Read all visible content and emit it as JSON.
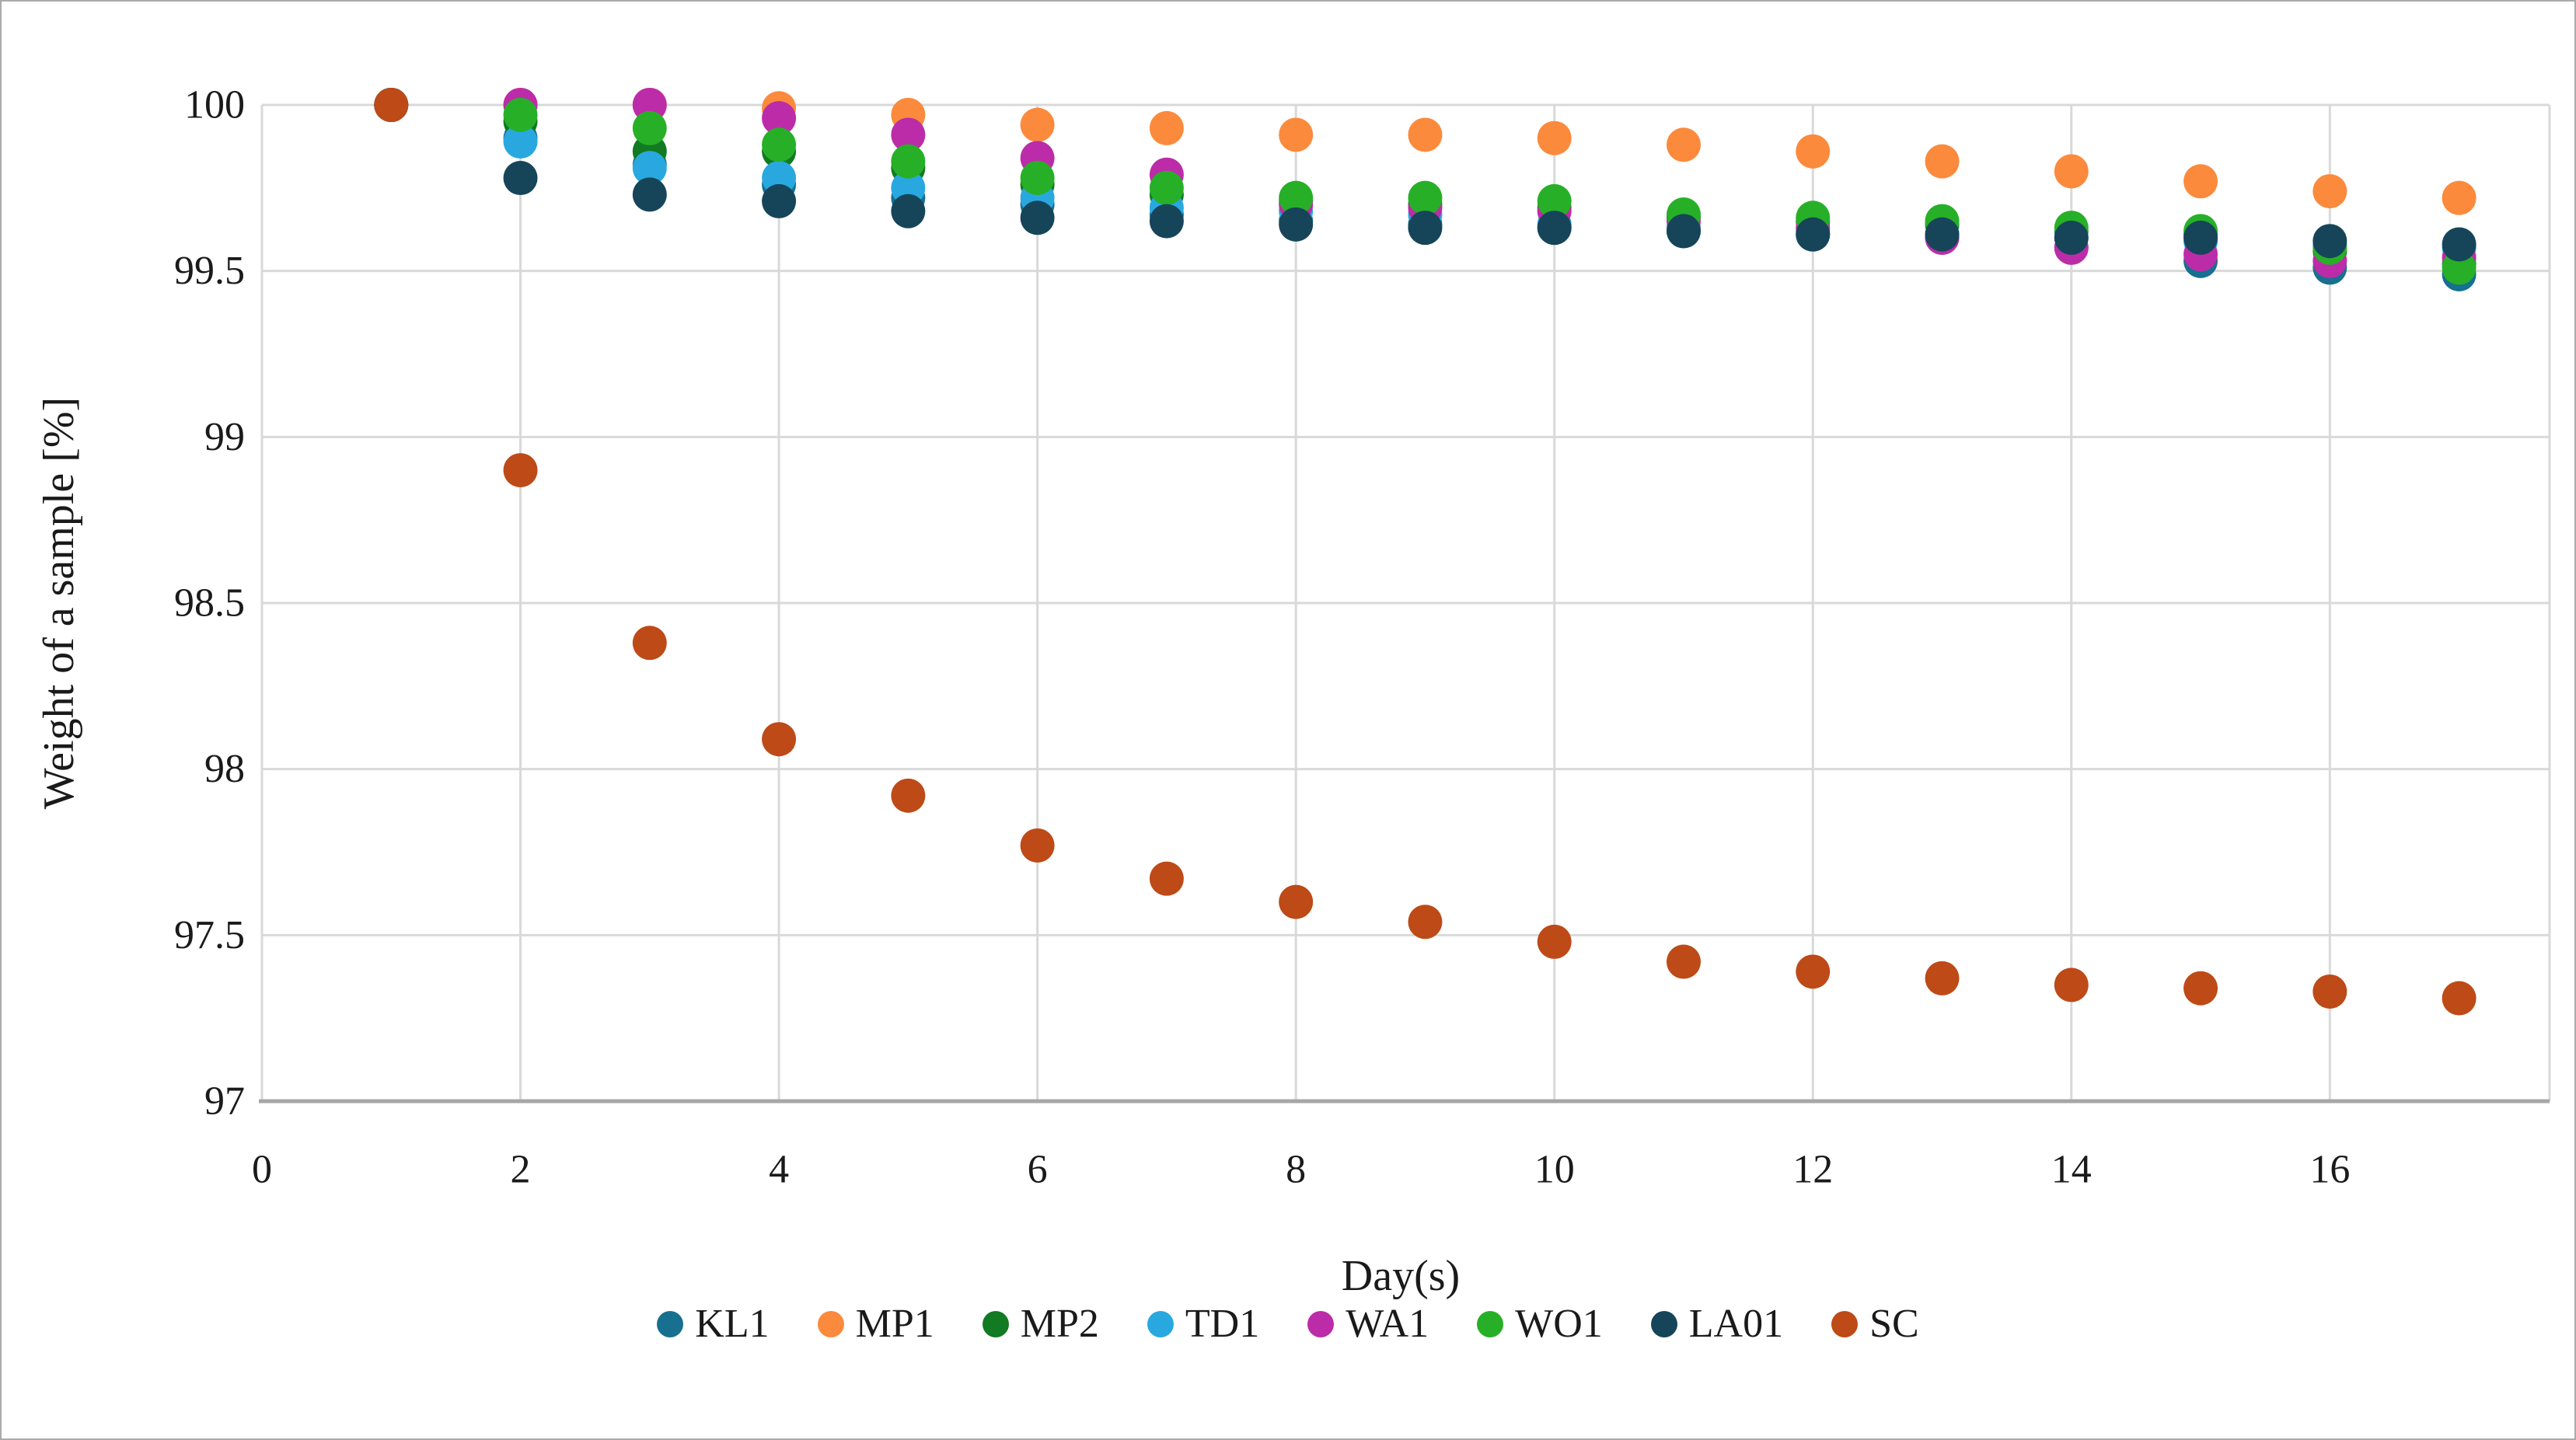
{
  "figure": {
    "x_axis_title": "Day(s)",
    "y_axis_title": "Weight of a sample [%]"
  },
  "chart_data": {
    "type": "scatter",
    "title": "",
    "xlabel": "Day(s)",
    "ylabel": "Weight of a sample [%]",
    "x_range": [
      0,
      17.7
    ],
    "y_range": [
      97,
      100
    ],
    "x_ticks": [
      0,
      2,
      4,
      6,
      8,
      10,
      12,
      14,
      16
    ],
    "y_ticks": [
      97,
      97.5,
      98,
      98.5,
      99,
      99.5,
      100
    ],
    "grid": true,
    "legend_position": "bottom-center",
    "marker": "circle",
    "x": [
      1,
      2,
      3,
      4,
      5,
      6,
      7,
      8,
      9,
      10,
      11,
      12,
      13,
      14,
      15,
      16,
      17
    ],
    "series": [
      {
        "name": "KL1",
        "color": "#17708f",
        "values": [
          100,
          99.9,
          99.82,
          99.76,
          99.72,
          99.7,
          99.67,
          99.65,
          99.64,
          99.63,
          99.62,
          99.61,
          99.6,
          99.57,
          99.53,
          99.51,
          99.49
        ]
      },
      {
        "name": "MP1",
        "color": "#fb8a3c",
        "values": [
          100,
          100.0,
          100.0,
          99.99,
          99.97,
          99.94,
          99.93,
          99.91,
          99.91,
          99.9,
          99.88,
          99.86,
          99.83,
          99.8,
          99.77,
          99.74,
          99.72
        ]
      },
      {
        "name": "MP2",
        "color": "#127a22",
        "values": [
          100,
          99.95,
          99.86,
          99.86,
          99.81,
          99.76,
          99.73,
          99.71,
          99.7,
          99.69,
          99.66,
          99.65,
          99.64,
          99.62,
          99.61,
          99.56,
          99.52
        ]
      },
      {
        "name": "TD1",
        "color": "#29a8e0",
        "values": [
          100,
          99.89,
          99.81,
          99.78,
          99.75,
          99.72,
          99.69,
          99.68,
          99.67,
          99.64,
          99.63,
          99.62,
          99.61,
          99.6,
          99.59,
          99.58,
          99.57
        ]
      },
      {
        "name": "WA1",
        "color": "#bc2ca8",
        "values": [
          100,
          100.0,
          100.0,
          99.96,
          99.91,
          99.84,
          99.79,
          99.7,
          99.69,
          99.68,
          99.65,
          99.63,
          99.6,
          99.57,
          99.55,
          99.53,
          99.54
        ]
      },
      {
        "name": "WO1",
        "color": "#27b027",
        "values": [
          100,
          99.97,
          99.93,
          99.88,
          99.83,
          99.78,
          99.75,
          99.72,
          99.72,
          99.71,
          99.67,
          99.66,
          99.65,
          99.63,
          99.62,
          99.57,
          99.51
        ]
      },
      {
        "name": "LA01",
        "color": "#16455a",
        "values": [
          100,
          99.78,
          99.73,
          99.71,
          99.68,
          99.66,
          99.65,
          99.64,
          99.63,
          99.63,
          99.62,
          99.61,
          99.61,
          99.6,
          99.6,
          99.59,
          99.58
        ]
      },
      {
        "name": "SC",
        "color": "#bd4a17",
        "values": [
          100,
          98.9,
          98.38,
          98.09,
          97.92,
          97.77,
          97.67,
          97.6,
          97.54,
          97.48,
          97.42,
          97.39,
          97.37,
          97.35,
          97.34,
          97.33,
          97.31
        ]
      }
    ]
  },
  "style_colors": {
    "gridline": "#d9d9d9",
    "axis_line": "#a6a6a6",
    "tick_text": "#1a1a1a",
    "background": "#ffffff"
  }
}
